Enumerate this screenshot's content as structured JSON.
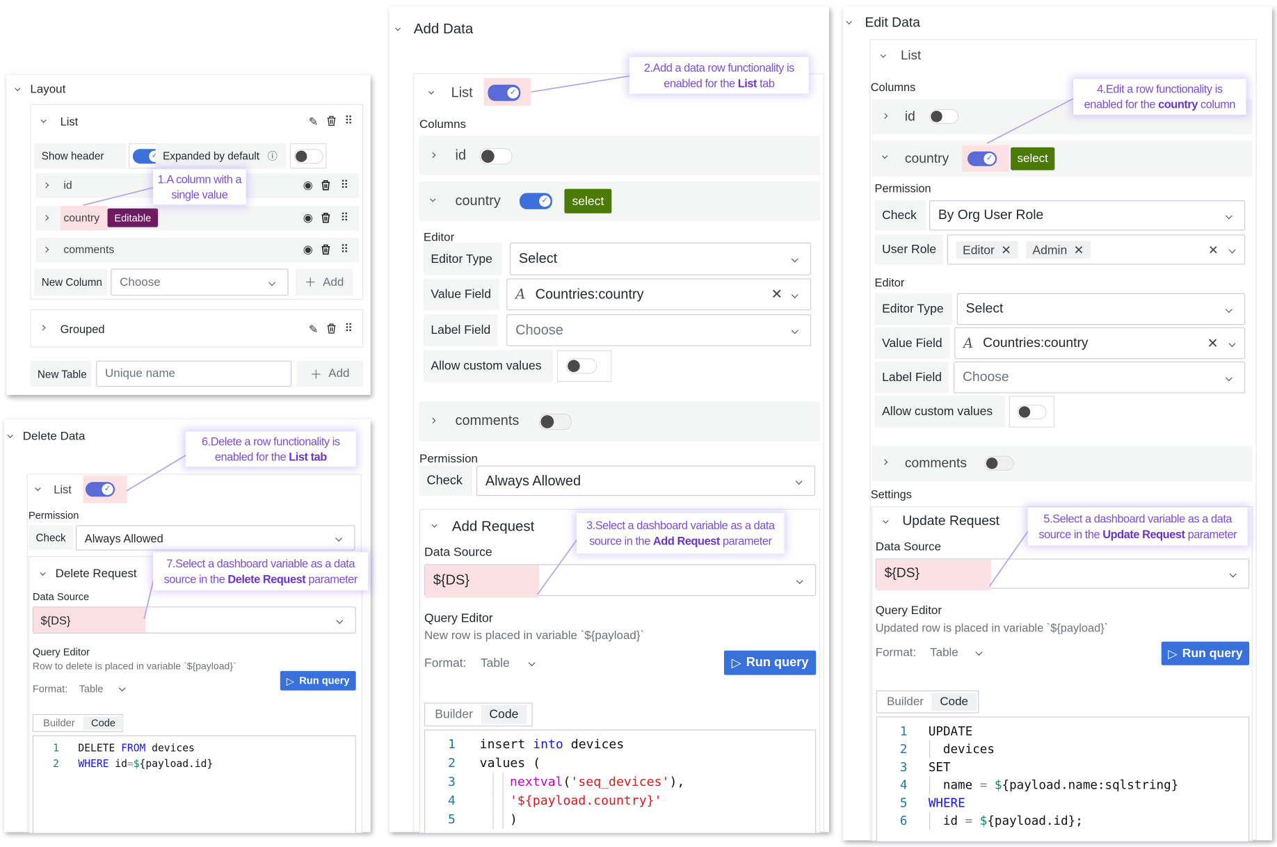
{
  "layout": {
    "title": "Layout",
    "list": {
      "title": "List",
      "show_header_label": "Show header",
      "show_header_on": true,
      "expanded_label": "Expanded by default",
      "expanded_on": false,
      "columns": [
        {
          "name": "id"
        },
        {
          "name": "country",
          "badge": "Editable"
        },
        {
          "name": "comments"
        }
      ],
      "new_column_label": "New Column",
      "new_column_placeholder": "Choose",
      "add_label": "Add"
    },
    "grouped": {
      "title": "Grouped"
    },
    "new_table_label": "New Table",
    "new_table_placeholder": "Unique name",
    "add_label": "Add"
  },
  "delete_data": {
    "title": "Delete Data",
    "list_label": "List",
    "list_on": true,
    "permission_label": "Permission",
    "check_label": "Check",
    "check_value": "Always Allowed",
    "request_title": "Delete Request",
    "data_source_label": "Data Source",
    "data_source_value": "${DS}",
    "query_editor_label": "Query Editor",
    "query_editor_hint": "Row to delete is placed in variable `${payload}`",
    "format_label": "Format:",
    "format_value": "Table",
    "run_query": "Run query",
    "tabs": [
      "Builder",
      "Code"
    ],
    "active_tab": "Code",
    "code": [
      {
        "indent": 0,
        "tokens": [
          {
            "text": "DELETE ",
            "kind": "plain"
          },
          {
            "text": "FROM",
            "kind": "kw"
          },
          {
            "text": " devices",
            "kind": "plain"
          }
        ]
      },
      {
        "indent": 0,
        "tokens": [
          {
            "text": "WHERE",
            "kind": "kw"
          },
          {
            "text": " id",
            "kind": "plain"
          },
          {
            "text": "=",
            "kind": "op"
          },
          {
            "text": "$",
            "kind": "var"
          },
          {
            "text": "{payload.id}",
            "kind": "plain"
          }
        ]
      }
    ]
  },
  "add_data": {
    "title": "Add Data",
    "list_label": "List",
    "list_on": true,
    "columns_label": "Columns",
    "columns": [
      {
        "name": "id",
        "enabled": false
      },
      {
        "name": "country",
        "enabled": true,
        "badge": "select"
      },
      {
        "name": "comments",
        "enabled": false
      }
    ],
    "editor_label": "Editor",
    "editor_type_label": "Editor Type",
    "editor_type_value": "Select",
    "value_field_label": "Value Field",
    "value_field_value": "Countries:country",
    "label_field_label": "Label Field",
    "label_field_placeholder": "Choose",
    "allow_custom_label": "Allow custom values",
    "allow_custom_on": false,
    "permission_label": "Permission",
    "check_label": "Check",
    "check_value": "Always Allowed",
    "request_title": "Add Request",
    "data_source_label": "Data Source",
    "data_source_value": "${DS}",
    "query_editor_label": "Query Editor",
    "query_editor_hint": "New row is placed in variable `${payload}`",
    "format_label": "Format:",
    "format_value": "Table",
    "run_query": "Run query",
    "tabs": [
      "Builder",
      "Code"
    ],
    "active_tab": "Code",
    "code": [
      {
        "indent": 0,
        "tokens": [
          {
            "text": "insert ",
            "kind": "plain"
          },
          {
            "text": "into",
            "kind": "kw"
          },
          {
            "text": " devices",
            "kind": "plain"
          }
        ]
      },
      {
        "indent": 0,
        "tokens": [
          {
            "text": "values (",
            "kind": "plain"
          }
        ]
      },
      {
        "indent": 1,
        "tokens": [
          {
            "text": "nextval",
            "kind": "fn"
          },
          {
            "text": "(",
            "kind": "plain"
          },
          {
            "text": "'seq_devices'",
            "kind": "str"
          },
          {
            "text": "),",
            "kind": "plain"
          }
        ]
      },
      {
        "indent": 1,
        "tokens": [
          {
            "text": "'${payload.country}'",
            "kind": "str"
          }
        ]
      },
      {
        "indent": 1,
        "tokens": [
          {
            "text": ")",
            "kind": "plain"
          }
        ]
      }
    ]
  },
  "edit_data": {
    "title": "Edit Data",
    "list_label": "List",
    "columns_label": "Columns",
    "columns": [
      {
        "name": "id",
        "enabled": false
      },
      {
        "name": "country",
        "enabled": true,
        "badge": "select"
      },
      {
        "name": "comments",
        "enabled": false
      }
    ],
    "permission_label": "Permission",
    "check_label": "Check",
    "check_value": "By Org User Role",
    "user_role_label": "User Role",
    "user_roles": [
      "Editor",
      "Admin"
    ],
    "editor_label": "Editor",
    "editor_type_label": "Editor Type",
    "editor_type_value": "Select",
    "value_field_label": "Value Field",
    "value_field_value": "Countries:country",
    "label_field_label": "Label Field",
    "label_field_placeholder": "Choose",
    "allow_custom_label": "Allow custom values",
    "allow_custom_on": false,
    "settings_label": "Settings",
    "request_title": "Update Request",
    "data_source_label": "Data Source",
    "data_source_value": "${DS}",
    "query_editor_label": "Query Editor",
    "query_editor_hint": "Updated row is placed in variable `${payload}`",
    "format_label": "Format:",
    "format_value": "Table",
    "run_query": "Run query",
    "tabs": [
      "Builder",
      "Code"
    ],
    "active_tab": "Code",
    "code": [
      {
        "indent": 0,
        "tokens": [
          {
            "text": "UPDATE",
            "kind": "plain"
          }
        ]
      },
      {
        "indent": 1,
        "tokens": [
          {
            "text": "devices",
            "kind": "plain"
          }
        ]
      },
      {
        "indent": 0,
        "tokens": [
          {
            "text": "SET",
            "kind": "plain"
          }
        ]
      },
      {
        "indent": 1,
        "tokens": [
          {
            "text": "name",
            "kind": "plain"
          },
          {
            "text": " = ",
            "kind": "op"
          },
          {
            "text": "$",
            "kind": "var"
          },
          {
            "text": "{payload.name:sqlstring}",
            "kind": "plain"
          }
        ]
      },
      {
        "indent": 0,
        "tokens": [
          {
            "text": "WHERE",
            "kind": "kw"
          }
        ]
      },
      {
        "indent": 1,
        "tokens": [
          {
            "text": "id",
            "kind": "plain"
          },
          {
            "text": " = ",
            "kind": "op"
          },
          {
            "text": "$",
            "kind": "var"
          },
          {
            "text": "{payload.id};",
            "kind": "plain"
          }
        ]
      }
    ]
  },
  "annotations": {
    "a1": {
      "line1": "1.A column with a",
      "line2_pre": "single value",
      "line2_bold": "",
      "line2_post": ""
    },
    "a2": {
      "line1": "2.Add a data row  functionality is",
      "line2_pre": "enabled for the ",
      "line2_bold": "List",
      "line2_post": " tab"
    },
    "a3": {
      "line1": "3.Select a dashboard variable as a data",
      "line2_pre": "source in the ",
      "line2_bold": "Add Request",
      "line2_post": " parameter"
    },
    "a4": {
      "line1": "4.Edit a row functionality is",
      "line2_pre": "enabled for the ",
      "line2_bold": "country",
      "line2_post": " column"
    },
    "a5": {
      "line1": "5.Select a dashboard variable as a data",
      "line2_pre": "source in the ",
      "line2_bold": "Update Request",
      "line2_post": " parameter"
    },
    "a6": {
      "line1": "6.Delete a row functionality is",
      "line2_pre": "enabled for the ",
      "line2_bold": "List tab",
      "line2_post": ""
    },
    "a7": {
      "line1": "7.Select a dashboard variable as a data",
      "line2_pre": "source in the ",
      "line2_bold": "Delete Request",
      "line2_post": " parameter"
    }
  },
  "colors": {
    "toggle_on": "#3d71d9",
    "badge_editable": "#6f1b5f",
    "badge_select": "#4b7a06",
    "highlight": "#fbe1e3",
    "annotation_text": "#7b4fd6",
    "run_query_button": "#3871dc"
  },
  "icons": {
    "collapse": "chevron-down-icon",
    "expand": "chevron-right-icon",
    "edit": "edit-icon",
    "delete": "trash-icon",
    "drag": "drag-handle-icon",
    "visibility": "eye-icon",
    "info": "info-icon",
    "add": "plus-icon",
    "run": "play-icon",
    "field_type": "string-field-icon",
    "clear": "close-icon"
  }
}
